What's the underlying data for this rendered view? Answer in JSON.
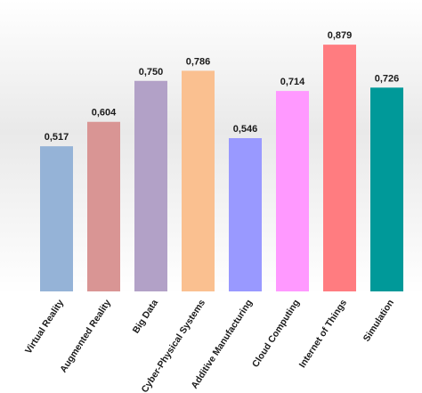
{
  "chart_data": {
    "type": "bar",
    "title": "",
    "xlabel": "",
    "ylabel": "",
    "ylim": [
      0,
      1
    ],
    "grid": false,
    "legend": "none",
    "categories": [
      "Virtual Reality",
      "Augmented Reality",
      "Big Data",
      "Cyber-Physical Systems",
      "Additive Manufacturing",
      "Cloud Computing",
      "Internet of Things",
      "Simulation"
    ],
    "values": [
      0.517,
      0.604,
      0.75,
      0.786,
      0.546,
      0.714,
      0.879,
      0.726
    ],
    "data_labels": [
      "0,517",
      "0,604",
      "0,750",
      "0,786",
      "0,546",
      "0,714",
      "0,879",
      "0,726"
    ],
    "colors": [
      "#95B3D7",
      "#D99594",
      "#B2A1C7",
      "#FAC090",
      "#9999FF",
      "#FF99FF",
      "#FF7C80",
      "#009999"
    ]
  }
}
